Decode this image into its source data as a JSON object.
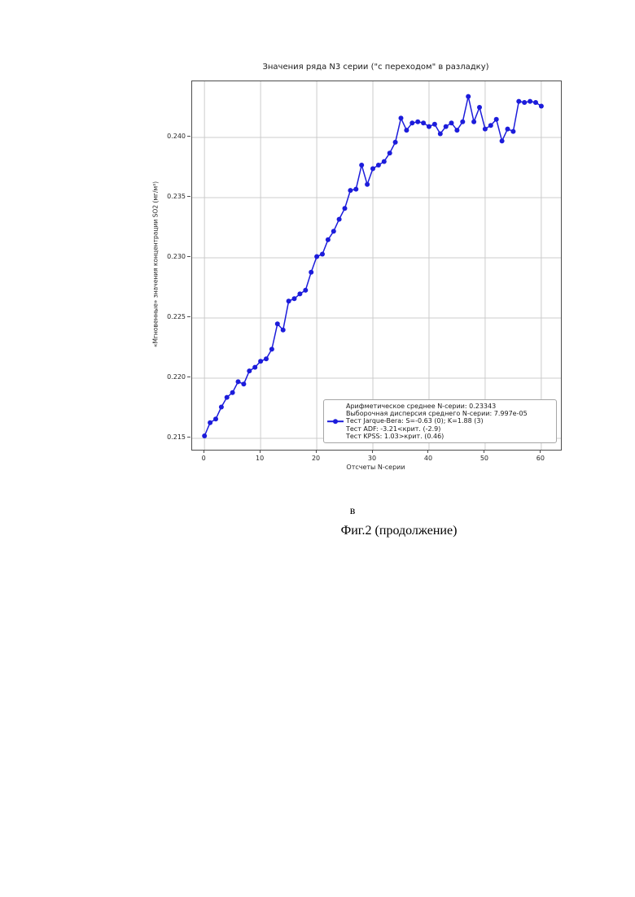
{
  "page": {
    "caption_letter": "в",
    "caption": "Фиг.2 (продолжение)"
  },
  "chart_data": {
    "type": "line",
    "title": "Значения ряда N3 серии (\"с переходом\" в разладку)",
    "xlabel": "Отсчеты N-серии",
    "ylabel": "«Мгновенные» значения концентрации SO2 (мг/м³)",
    "grid": true,
    "line_color": "#1c1cdb",
    "grid_color": "#cccccc",
    "axis_color": "#4d4d4d",
    "xlim": [
      -2.2,
      63.5
    ],
    "ylim": [
      0.21405,
      0.24466
    ],
    "x_ticks": [
      0,
      10,
      20,
      30,
      40,
      50,
      60
    ],
    "y_ticks": [
      0.215,
      0.22,
      0.225,
      0.23,
      0.235,
      0.24
    ],
    "y_tick_labels": [
      "0.215",
      "0.220",
      "0.225",
      "0.230",
      "0.235",
      "0.240"
    ],
    "x": [
      0,
      1,
      2,
      3,
      4,
      5,
      6,
      7,
      8,
      9,
      10,
      11,
      12,
      13,
      14,
      15,
      16,
      17,
      18,
      19,
      20,
      21,
      22,
      23,
      24,
      25,
      26,
      27,
      28,
      29,
      30,
      31,
      32,
      33,
      34,
      35,
      36,
      37,
      38,
      39,
      40,
      41,
      42,
      43,
      44,
      45,
      46,
      47,
      48,
      49,
      50,
      51,
      52,
      53,
      54,
      55,
      56,
      57,
      58,
      59,
      60
    ],
    "values": [
      0.2152,
      0.2163,
      0.2166,
      0.2176,
      0.2184,
      0.2188,
      0.2197,
      0.2195,
      0.2206,
      0.2209,
      0.2214,
      0.2216,
      0.2224,
      0.2245,
      0.224,
      0.2264,
      0.2266,
      0.227,
      0.2273,
      0.2288,
      0.2301,
      0.2303,
      0.2315,
      0.2322,
      0.2332,
      0.2341,
      0.2356,
      0.2357,
      0.2377,
      0.2361,
      0.2374,
      0.2377,
      0.238,
      0.2387,
      0.2396,
      0.2416,
      0.2406,
      0.2412,
      0.2413,
      0.2412,
      0.2409,
      0.2411,
      0.2403,
      0.2409,
      0.2412,
      0.2406,
      0.2413,
      0.2434,
      0.2413,
      0.2425,
      0.2407,
      0.241,
      0.2415,
      0.2397,
      0.2407,
      0.2405,
      0.243,
      0.2429,
      0.243,
      0.2429,
      0.2426
    ],
    "legend": {
      "position": "lower right",
      "handle_row": 2,
      "lines": [
        "Арифметическое среднее N-серии: 0.23343",
        "Выборочная дисперсия среднего N-серии: 7.997e-05",
        "Тест Jarque-Bera: S=-0.63 (0); K=1.88 (3)",
        "Тест ADF: -3.21<крит. (-2.9)",
        "Тест KPSS: 1.03>крит. (0.46)"
      ]
    }
  }
}
